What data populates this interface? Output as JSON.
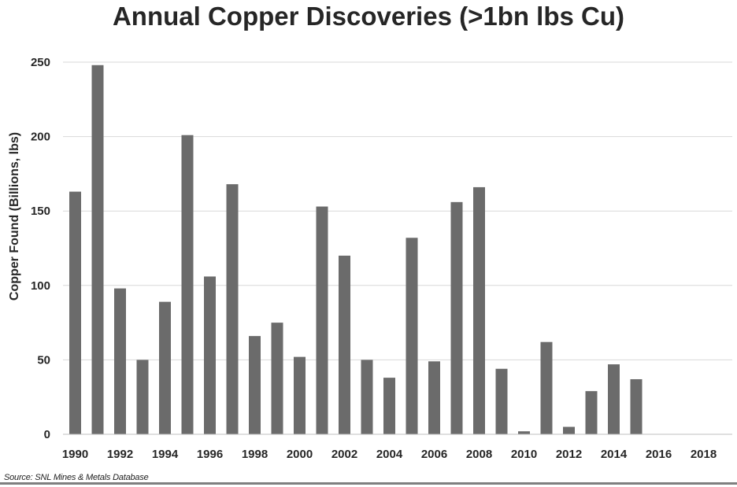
{
  "title": "Annual Copper Discoveries (>1bn lbs Cu)",
  "source": "Source: SNL Mines & Metals Database",
  "chart_data": {
    "type": "bar",
    "title": "Annual Copper Discoveries (>1bn lbs Cu)",
    "xlabel": "",
    "ylabel": "Copper Found (Billions, lbs)",
    "ylim": [
      0,
      250
    ],
    "yticks": [
      0,
      50,
      100,
      150,
      200,
      250
    ],
    "grid": true,
    "legend": "none",
    "bar_color": "#6b6b6b",
    "categories": [
      "1990",
      "1991",
      "1992",
      "1993",
      "1994",
      "1995",
      "1996",
      "1997",
      "1998",
      "1999",
      "2000",
      "2001",
      "2002",
      "2003",
      "2004",
      "2005",
      "2006",
      "2007",
      "2008",
      "2009",
      "2010",
      "2011",
      "2012",
      "2013",
      "2014",
      "2015",
      "2016",
      "2017",
      "2018"
    ],
    "xtick_labels": [
      "1990",
      "1992",
      "1994",
      "1996",
      "1998",
      "2000",
      "2002",
      "2004",
      "2006",
      "2008",
      "2010",
      "2012",
      "2014",
      "2016",
      "2018"
    ],
    "values": [
      163,
      248,
      98,
      50,
      89,
      201,
      106,
      168,
      66,
      75,
      52,
      153,
      120,
      50,
      38,
      132,
      49,
      156,
      166,
      44,
      2,
      62,
      5,
      29,
      47,
      37,
      0,
      0,
      0
    ]
  }
}
